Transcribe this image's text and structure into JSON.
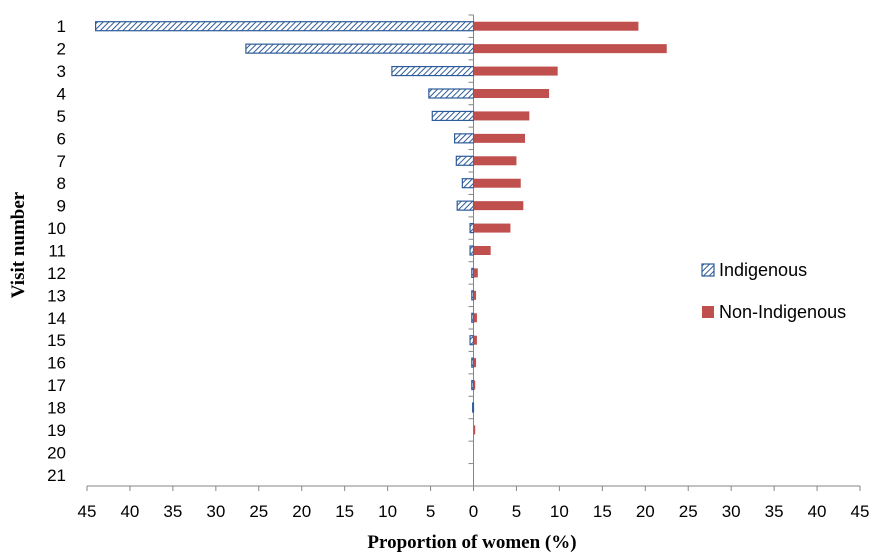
{
  "chart_data": {
    "type": "bar",
    "orientation": "horizontal",
    "layout": "diverging",
    "categories": [
      "1",
      "2",
      "3",
      "4",
      "5",
      "6",
      "7",
      "8",
      "9",
      "10",
      "11",
      "12",
      "13",
      "14",
      "15",
      "16",
      "17",
      "18",
      "19",
      "20",
      "21"
    ],
    "series": [
      {
        "name": "Indigenous",
        "side": "left",
        "pattern": "diagonal-hatch",
        "color": "#2e5c9a",
        "values": [
          44,
          26.5,
          9.5,
          5.2,
          4.8,
          2.2,
          2.0,
          1.3,
          1.9,
          0.4,
          0.4,
          0.2,
          0.2,
          0.2,
          0.4,
          0.2,
          0.2,
          0.1,
          0,
          0,
          0
        ]
      },
      {
        "name": "Non-Indigenous",
        "side": "right",
        "pattern": "solid",
        "color": "#c0504d",
        "values": [
          19.2,
          22.5,
          9.8,
          8.8,
          6.5,
          6.0,
          5.0,
          5.5,
          5.8,
          4.3,
          2.0,
          0.5,
          0.3,
          0.4,
          0.4,
          0.3,
          0.2,
          0,
          0.2,
          0,
          0
        ]
      }
    ],
    "xlabel": "Proportion of women (%)",
    "ylabel": "Visit number",
    "xlim": [
      -45,
      45
    ],
    "x_ticks": [
      "45",
      "40",
      "35",
      "30",
      "25",
      "20",
      "15",
      "10",
      "5",
      "0",
      "5",
      "10",
      "15",
      "20",
      "25",
      "30",
      "35",
      "40",
      "45"
    ],
    "grid": false,
    "legend_position": "right"
  }
}
